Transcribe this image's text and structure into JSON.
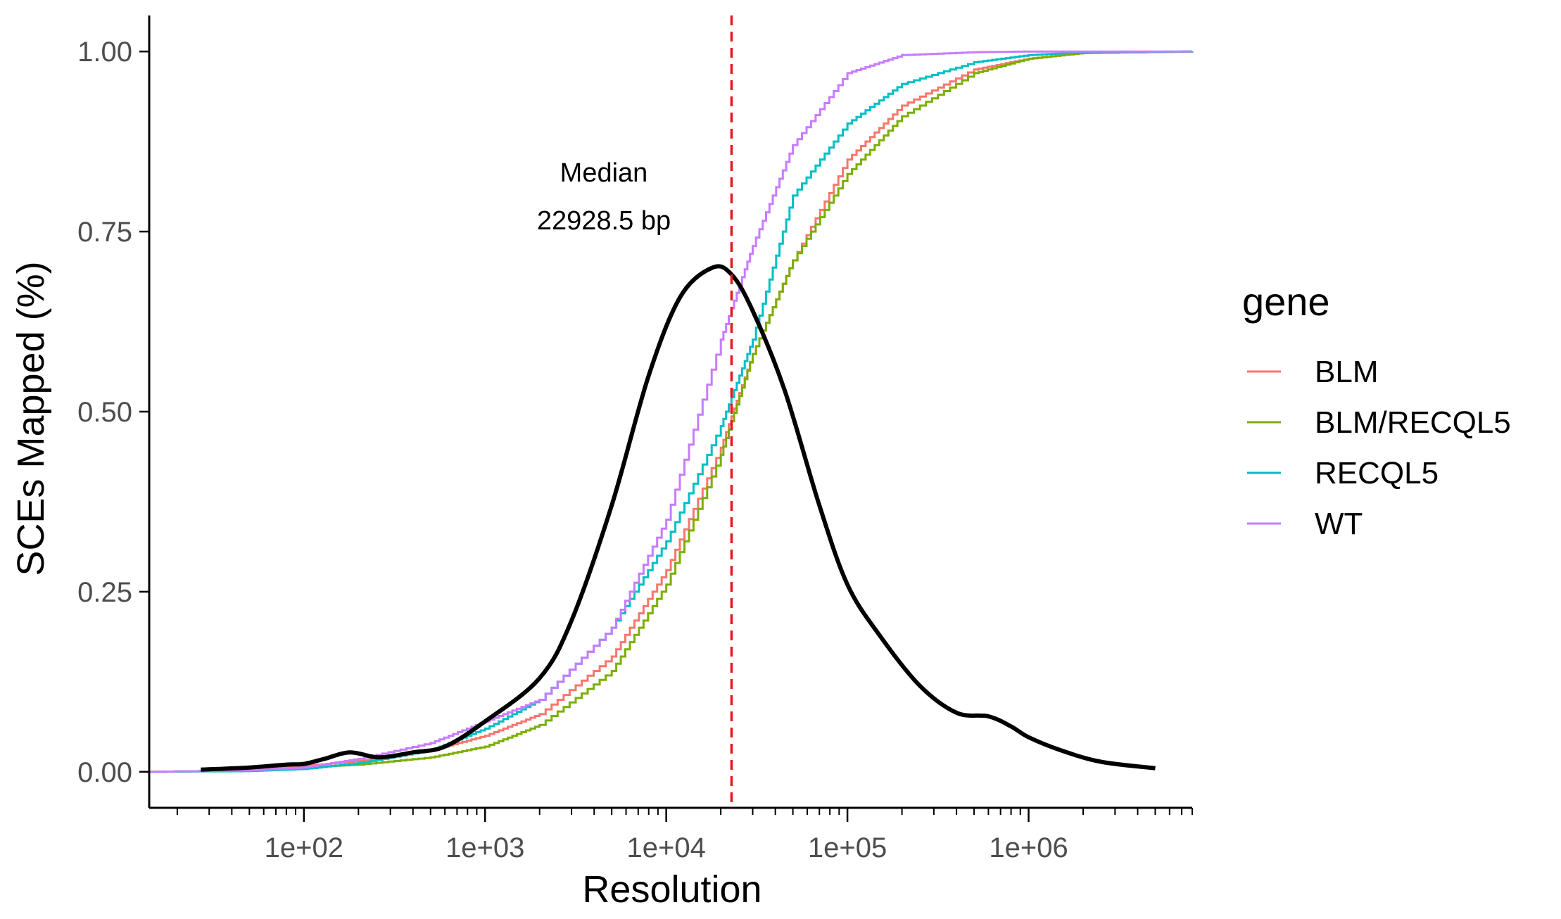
{
  "chart_data": {
    "type": "line",
    "title": "",
    "xlabel": "Resolution",
    "ylabel": "SCEs Mapped (%)",
    "x_scale": "log10",
    "xlim": [
      14,
      8000000
    ],
    "ylim": [
      -0.05,
      1.05
    ],
    "x_ticks": [
      {
        "value": 100,
        "label": "1e+02"
      },
      {
        "value": 1000,
        "label": "1e+03"
      },
      {
        "value": 10000,
        "label": "1e+04"
      },
      {
        "value": 100000,
        "label": "1e+05"
      },
      {
        "value": 1000000,
        "label": "1e+06"
      }
    ],
    "y_ticks": [
      {
        "value": 0,
        "label": "0.00"
      },
      {
        "value": 0.25,
        "label": "0.25"
      },
      {
        "value": 0.5,
        "label": "0.50"
      },
      {
        "value": 0.75,
        "label": "0.75"
      },
      {
        "value": 1,
        "label": "1.00"
      }
    ],
    "grid": false,
    "legend": {
      "title": "gene",
      "position": "right",
      "entries": [
        {
          "label": "BLM",
          "color": "#F8766D"
        },
        {
          "label": "BLM/RECQL5",
          "color": "#7CAE00"
        },
        {
          "label": "RECQL5",
          "color": "#00BFC4"
        },
        {
          "label": "WT",
          "color": "#C77CFF"
        }
      ]
    },
    "series": [
      {
        "name": "BLM",
        "color": "#F8766D",
        "step": true,
        "x": [
          14,
          50,
          100,
          200,
          500,
          1000,
          2000,
          5000,
          10000,
          20000,
          30000,
          50000,
          100000,
          200000,
          500000,
          1000000,
          2000000,
          8000000
        ],
        "y": [
          0,
          0.002,
          0.008,
          0.015,
          0.03,
          0.05,
          0.08,
          0.16,
          0.28,
          0.45,
          0.58,
          0.71,
          0.85,
          0.925,
          0.975,
          0.99,
          0.998,
          1.0
        ]
      },
      {
        "name": "BLM/RECQL5",
        "color": "#7CAE00",
        "step": true,
        "x": [
          14,
          50,
          100,
          200,
          500,
          1000,
          2000,
          5000,
          10000,
          20000,
          30000,
          50000,
          100000,
          200000,
          500000,
          1000000,
          2000000,
          8000000
        ],
        "y": [
          0,
          0.002,
          0.006,
          0.01,
          0.02,
          0.035,
          0.065,
          0.14,
          0.26,
          0.44,
          0.58,
          0.71,
          0.83,
          0.91,
          0.97,
          0.99,
          0.998,
          1.0
        ]
      },
      {
        "name": "RECQL5",
        "color": "#00BFC4",
        "step": true,
        "x": [
          14,
          50,
          100,
          200,
          500,
          1000,
          2000,
          5000,
          10000,
          20000,
          30000,
          50000,
          100000,
          200000,
          500000,
          1000000,
          2000000,
          8000000
        ],
        "y": [
          0,
          0.001,
          0.004,
          0.012,
          0.03,
          0.06,
          0.1,
          0.2,
          0.32,
          0.48,
          0.6,
          0.8,
          0.9,
          0.955,
          0.985,
          0.995,
          0.999,
          1.0
        ]
      },
      {
        "name": "WT",
        "color": "#C77CFF",
        "step": true,
        "x": [
          14,
          50,
          100,
          200,
          500,
          1000,
          2000,
          5000,
          10000,
          20000,
          30000,
          50000,
          100000,
          200000,
          500000,
          1000000,
          2000000,
          8000000
        ],
        "y": [
          0,
          0.002,
          0.006,
          0.018,
          0.04,
          0.07,
          0.1,
          0.2,
          0.35,
          0.6,
          0.73,
          0.87,
          0.97,
          0.995,
          0.999,
          1.0,
          1.0,
          1.0
        ]
      }
    ],
    "density_curve": {
      "color": "#000000",
      "x": [
        27,
        50,
        80,
        100,
        130,
        180,
        260,
        400,
        600,
        1000,
        2000,
        3000,
        5000,
        8000,
        12000,
        18000,
        23000,
        30000,
        45000,
        70000,
        100000,
        150000,
        250000,
        400000,
        600000,
        800000,
        1000000,
        1500000,
        2500000,
        5000000
      ],
      "y": [
        0.003,
        0.006,
        0.01,
        0.011,
        0.018,
        0.027,
        0.02,
        0.027,
        0.035,
        0.07,
        0.13,
        0.21,
        0.37,
        0.55,
        0.66,
        0.7,
        0.69,
        0.64,
        0.53,
        0.37,
        0.26,
        0.19,
        0.12,
        0.082,
        0.077,
        0.063,
        0.048,
        0.03,
        0.014,
        0.005
      ]
    },
    "median_line": {
      "x": 22928.5,
      "color": "#E41A1C",
      "style": "dashed"
    },
    "annotations": [
      {
        "text": "Median",
        "x": 2000,
        "y": 0.83
      },
      {
        "text": "22928.5 bp",
        "x": 2000,
        "y": 0.765
      }
    ]
  }
}
